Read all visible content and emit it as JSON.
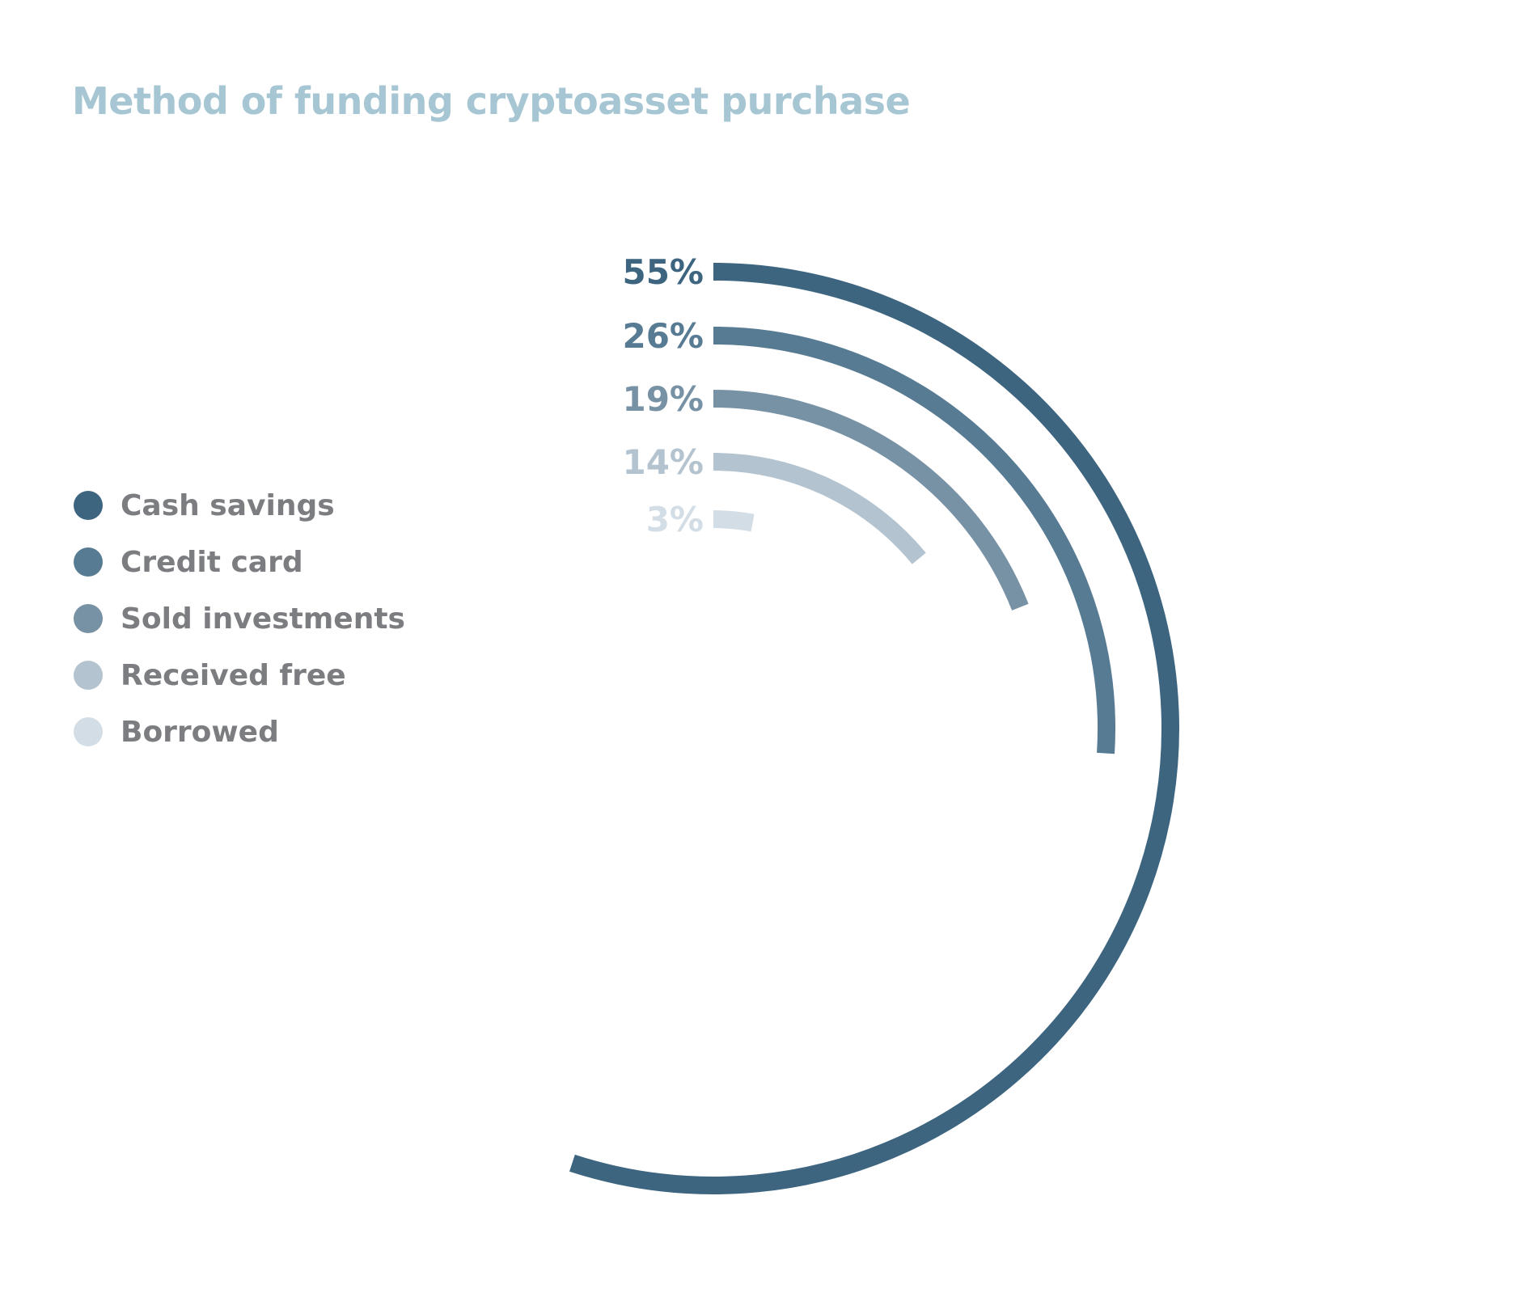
{
  "chart_data": {
    "type": "radial-bar",
    "title": "Method of funding cryptoasset purchase",
    "categories": [
      "Cash savings",
      "Credit card",
      "Sold investments",
      "Received free",
      "Borrowed"
    ],
    "values": [
      55,
      26,
      19,
      14,
      3
    ],
    "value_labels": [
      "55%",
      "26%",
      "19%",
      "14%",
      "3%"
    ],
    "colors": [
      "#3d6580",
      "#587b94",
      "#7791a5",
      "#b3c3cf",
      "#d3dde5"
    ],
    "legend_position": "left",
    "unit": "%"
  }
}
